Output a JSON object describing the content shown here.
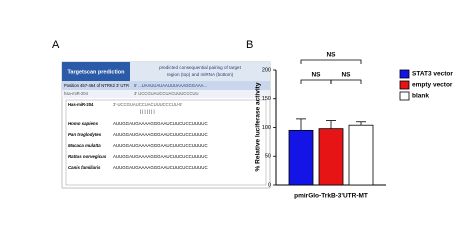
{
  "panel_a": {
    "label": "A",
    "header": {
      "title": "Targetscan prediction",
      "pairing_lines": [
        "predicted consequential pairing of target",
        "region (top) and miRNA (bottom)"
      ]
    },
    "rows": [
      [
        "Position 457-464 of NTRK2 3' UTR",
        "5' ...UAAUUAUAAUUUAAAGGGAAA..."
      ],
      [
        "hsa-miR-204",
        "3'     UCCGUAUCCUACUUUCCCUU"
      ]
    ],
    "alignment": {
      "mirna_name": "Has-miR-204",
      "mirna_sequence": "3'-UCCGUAUCCUACUUUCCCUU-5'",
      "pairing": "| | | | | | |",
      "species": [
        {
          "name": "Homo sapiens",
          "sequence": "AUUGGAUGAAAAGGGAAUCUUCUCCUUUUC"
        },
        {
          "name": "Pan troglodytes",
          "sequence": "AUUGGAUGAAAAGGGAAUCUUCUCCUUUUC"
        },
        {
          "name": "Macaca mulatta",
          "sequence": "AUUGGAUGAAAAGGGAAUCUUCUCCUUUUC"
        },
        {
          "name": "Rattus norvegicus",
          "sequence": "AUUGGAUGAAAAGGGAAUCUUCUCCUUUUC"
        },
        {
          "name": "Canis familiaris",
          "sequence": "AUUGGAUGAAAAGGGAAUCUUCUCCUUUUC"
        }
      ]
    }
  },
  "chart_data": {
    "type": "bar",
    "panel_label": "B",
    "ylabel": "% Relative luciferase activity",
    "categories": [
      "pmirGlo-TrkB-3'UTR-MT"
    ],
    "series": [
      {
        "name": "STAT3 vector",
        "color": "#1414e6",
        "values": [
          95
        ],
        "errors": [
          20
        ]
      },
      {
        "name": "empty vector",
        "color": "#e61414",
        "values": [
          98
        ],
        "errors": [
          14
        ]
      },
      {
        "name": "blank",
        "color": "#ffffff",
        "values": [
          104
        ],
        "errors": [
          6
        ]
      }
    ],
    "ylim": [
      0,
      200
    ],
    "yticks": [
      0,
      50,
      100,
      150,
      200
    ],
    "annotations": [
      "NS",
      "NS",
      "NS"
    ]
  }
}
